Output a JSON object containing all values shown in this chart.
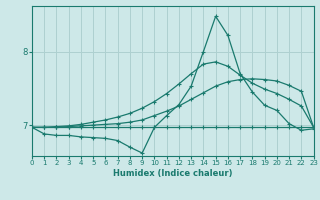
{
  "xlabel": "Humidex (Indice chaleur)",
  "background_color": "#cde8e8",
  "grid_color": "#aed0d0",
  "line_color": "#1a7a6e",
  "xlim": [
    0,
    23
  ],
  "ylim": [
    6.58,
    8.62
  ],
  "yticks": [
    7,
    8
  ],
  "xticks": [
    0,
    1,
    2,
    3,
    4,
    5,
    6,
    7,
    8,
    9,
    10,
    11,
    12,
    13,
    14,
    15,
    16,
    17,
    18,
    19,
    20,
    21,
    22,
    23
  ],
  "line1_x": [
    0,
    1,
    2,
    3,
    4,
    5,
    6,
    7,
    8,
    9,
    10,
    11,
    12,
    13,
    14,
    15,
    16,
    17,
    18,
    19,
    20,
    21,
    22,
    23
  ],
  "line1_y": [
    6.97,
    6.97,
    6.97,
    6.97,
    6.97,
    6.97,
    6.97,
    6.97,
    6.97,
    6.97,
    6.97,
    6.97,
    6.97,
    6.97,
    6.97,
    6.97,
    6.97,
    6.97,
    6.97,
    6.97,
    6.97,
    6.97,
    6.97,
    6.97
  ],
  "line2_x": [
    0,
    1,
    2,
    3,
    4,
    5,
    6,
    7,
    8,
    9,
    10,
    11,
    12,
    13,
    14,
    15,
    16,
    17,
    18,
    19,
    20,
    21,
    22,
    23
  ],
  "line2_y": [
    6.97,
    6.88,
    6.86,
    6.86,
    6.84,
    6.83,
    6.82,
    6.79,
    6.7,
    6.62,
    6.97,
    7.13,
    7.28,
    7.53,
    8.0,
    8.48,
    8.22,
    7.7,
    7.45,
    7.27,
    7.2,
    7.02,
    6.93,
    6.95
  ],
  "line3_x": [
    0,
    1,
    2,
    3,
    4,
    5,
    6,
    7,
    8,
    9,
    10,
    11,
    12,
    13,
    14,
    15,
    16,
    17,
    18,
    19,
    20,
    21,
    22,
    23
  ],
  "line3_y": [
    6.97,
    6.97,
    6.97,
    6.98,
    6.99,
    7.0,
    7.01,
    7.02,
    7.04,
    7.07,
    7.13,
    7.19,
    7.26,
    7.35,
    7.44,
    7.53,
    7.59,
    7.62,
    7.63,
    7.62,
    7.6,
    7.54,
    7.46,
    6.97
  ],
  "line4_x": [
    0,
    1,
    2,
    3,
    4,
    5,
    6,
    7,
    8,
    9,
    10,
    11,
    12,
    13,
    14,
    15,
    16,
    17,
    18,
    19,
    20,
    21,
    22,
    23
  ],
  "line4_y": [
    6.97,
    6.97,
    6.98,
    6.99,
    7.01,
    7.04,
    7.07,
    7.11,
    7.16,
    7.23,
    7.32,
    7.43,
    7.56,
    7.7,
    7.83,
    7.86,
    7.8,
    7.68,
    7.57,
    7.49,
    7.43,
    7.35,
    7.26,
    6.97
  ]
}
